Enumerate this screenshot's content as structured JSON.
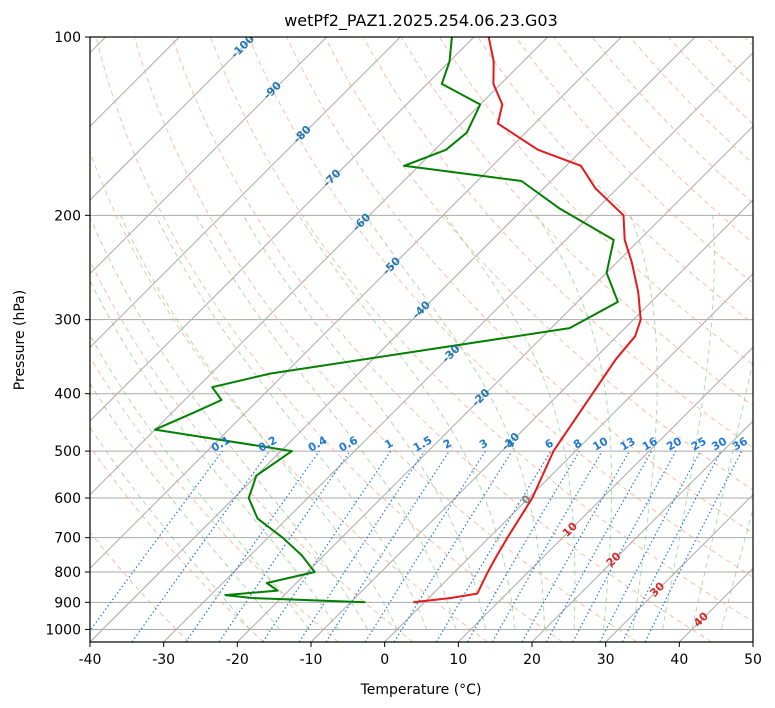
{
  "chart_data": {
    "type": "line",
    "title": "wetPf2_PAZ1.2025.254.06.23.G03",
    "xlabel": "Temperature (°C)",
    "ylabel": "Pressure (hPa)",
    "xlim": [
      -40,
      50
    ],
    "ylim": [
      1050,
      100
    ],
    "x_ticks": [
      "-40",
      "-30",
      "-20",
      "-10",
      "0",
      "10",
      "20",
      "30",
      "40",
      "50"
    ],
    "y_ticks": [
      "100",
      "200",
      "300",
      "400",
      "500",
      "600",
      "700",
      "800",
      "900",
      "1000"
    ],
    "skew_degrees": 45,
    "colors": {
      "temperature": "#e41a1c",
      "dewpoint": "#008000",
      "isotherm": "#999999",
      "dry_adiabat": "#f4a582",
      "moist_adiabat": "#74c476",
      "mixing_ratio": "#1f78d8",
      "frame": "#000000"
    },
    "series": [
      {
        "name": "temperature",
        "points": [
          [
            -1.5,
            900
          ],
          [
            3.0,
            885
          ],
          [
            6.0,
            870
          ],
          [
            4.5,
            800
          ],
          [
            3.5,
            750
          ],
          [
            2.5,
            700
          ],
          [
            0.5,
            600
          ],
          [
            -3.0,
            500
          ],
          [
            -5.5,
            400
          ],
          [
            -7.0,
            350
          ],
          [
            -7.5,
            320
          ],
          [
            -9.0,
            300
          ],
          [
            -13.0,
            270
          ],
          [
            -18.0,
            240
          ],
          [
            -22.0,
            220
          ],
          [
            -25.5,
            200
          ],
          [
            -33.0,
            180
          ],
          [
            -38.0,
            165
          ],
          [
            -46.0,
            155
          ],
          [
            -55.0,
            140
          ],
          [
            -57.0,
            130
          ],
          [
            -61.0,
            120
          ],
          [
            -64.0,
            110
          ],
          [
            -68.0,
            100
          ]
        ]
      },
      {
        "name": "dewpoint",
        "points": [
          [
            -8.0,
            900
          ],
          [
            -24.0,
            885
          ],
          [
            -28.0,
            875
          ],
          [
            -21.5,
            860
          ],
          [
            -24.0,
            835
          ],
          [
            -19.0,
            800
          ],
          [
            -23.0,
            750
          ],
          [
            -28.0,
            700
          ],
          [
            -34.0,
            650
          ],
          [
            -38.0,
            600
          ],
          [
            -40.0,
            550
          ],
          [
            -38.5,
            500
          ],
          [
            -60.0,
            460
          ],
          [
            -57.0,
            430
          ],
          [
            -55.0,
            410
          ],
          [
            -58.0,
            390
          ],
          [
            -52.0,
            370
          ],
          [
            -17.5,
            310
          ],
          [
            -14.5,
            280
          ],
          [
            -20.0,
            250
          ],
          [
            -23.5,
            220
          ],
          [
            -35.0,
            195
          ],
          [
            -44.0,
            175
          ],
          [
            -62.0,
            165
          ],
          [
            -58.5,
            155
          ],
          [
            -58.0,
            145
          ],
          [
            -60.0,
            130
          ],
          [
            -68.0,
            120
          ],
          [
            -70.0,
            110
          ],
          [
            -73.0,
            100
          ]
        ]
      }
    ],
    "isotherm_labels": [
      {
        "value": -100,
        "text": "-100"
      },
      {
        "value": -90,
        "text": "-90"
      },
      {
        "value": -80,
        "text": "-80"
      },
      {
        "value": -70,
        "text": "-70"
      },
      {
        "value": -60,
        "text": "-60"
      },
      {
        "value": -50,
        "text": "-50"
      },
      {
        "value": -40,
        "text": "-40"
      },
      {
        "value": -30,
        "text": "-30"
      },
      {
        "value": -20,
        "text": "-20"
      },
      {
        "value": -10,
        "text": "-10"
      },
      {
        "value": 0,
        "text": "0"
      },
      {
        "value": 10,
        "text": "10"
      },
      {
        "value": 20,
        "text": "20"
      },
      {
        "value": 30,
        "text": "30"
      },
      {
        "value": 40,
        "text": "40"
      }
    ],
    "mixing_ratio_labels": [
      "0.1",
      "0.2",
      "0.4",
      "0.6",
      "1",
      "1.5",
      "2",
      "3",
      "4",
      "6",
      "8",
      "10",
      "13",
      "16",
      "20",
      "25",
      "30",
      "36"
    ],
    "mixing_ratio_values": [
      0.1,
      0.2,
      0.4,
      0.6,
      1,
      1.5,
      2,
      3,
      4,
      6,
      8,
      10,
      13,
      16,
      20,
      25,
      30,
      36
    ]
  }
}
